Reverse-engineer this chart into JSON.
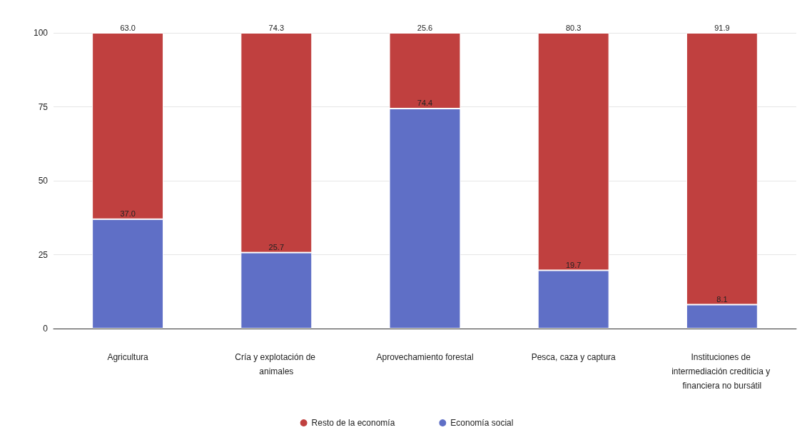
{
  "chart_data": {
    "type": "bar",
    "stacked": true,
    "categories": [
      "Agricultura",
      "Cría y explotación de animales",
      "Aprovechamiento forestal",
      "Pesca, caza y captura",
      "Instituciones de intermediación crediticia y financiera no bursátil"
    ],
    "series": [
      {
        "name": "Economía social",
        "color": "#5f6fc6",
        "values": [
          37.0,
          25.7,
          74.4,
          19.7,
          8.1
        ],
        "value_labels": [
          "37.0",
          "25.7",
          "74.4",
          "19.7",
          "8.1"
        ]
      },
      {
        "name": "Resto de la economía",
        "color": "#c0403f",
        "values": [
          63.0,
          74.3,
          25.6,
          80.3,
          91.9
        ],
        "value_labels": [
          "63.0",
          "74.3",
          "25.6",
          "80.3",
          "91.9"
        ]
      }
    ],
    "ylim": [
      0,
      100
    ],
    "yticks": [
      0,
      25,
      50,
      75,
      100
    ],
    "grid": "y",
    "legend": "bottom"
  }
}
